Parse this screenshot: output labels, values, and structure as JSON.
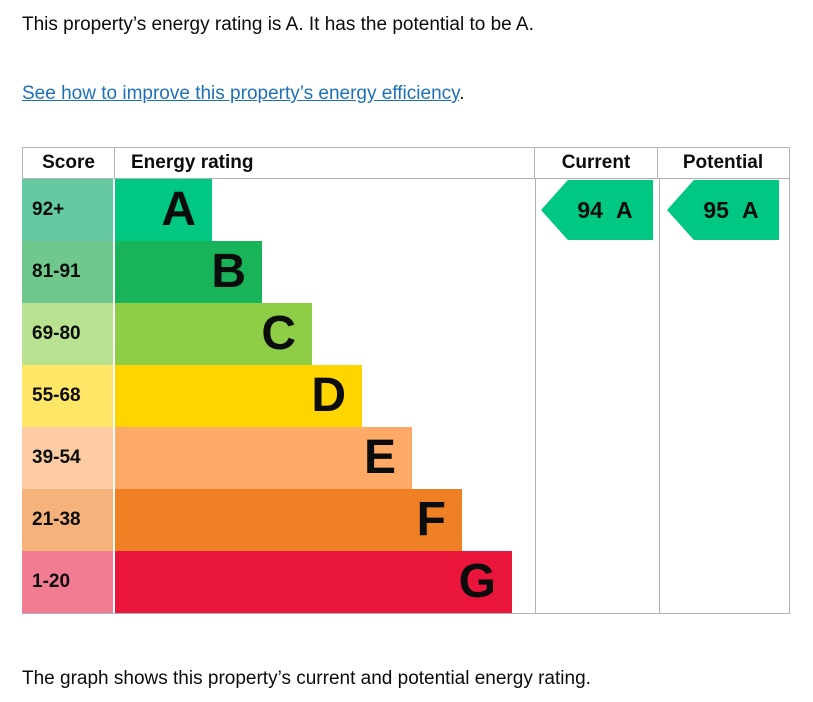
{
  "page": {
    "intro": "This property’s energy rating is A. It has the potential to be A.",
    "link_text": "See how to improve this property’s energy efficiency",
    "link_suffix": ".",
    "caption": "The graph shows this property’s current and potential energy rating."
  },
  "colors": {
    "text": "#0b0c0c",
    "link": "#1d70b8",
    "border": "#b1b4b6",
    "arrow": "#00c781"
  },
  "chart_data": {
    "type": "bar",
    "title": "EPC energy rating chart",
    "headers": {
      "score": "Score",
      "rating": "Energy rating",
      "current": "Current",
      "potential": "Potential"
    },
    "bands": [
      {
        "score": "92+",
        "letter": "A",
        "band_color": "#00c781",
        "score_color": "#65caa1"
      },
      {
        "score": "81-91",
        "letter": "B",
        "band_color": "#19b459",
        "score_color": "#70c98c"
      },
      {
        "score": "69-80",
        "letter": "C",
        "band_color": "#8dce46",
        "score_color": "#b9e290"
      },
      {
        "score": "55-68",
        "letter": "D",
        "band_color": "#ffd500",
        "score_color": "#ffe666"
      },
      {
        "score": "39-54",
        "letter": "E",
        "band_color": "#fcaa65",
        "score_color": "#fdcca2"
      },
      {
        "score": "21-38",
        "letter": "F",
        "band_color": "#ef8023",
        "score_color": "#f5b37b"
      },
      {
        "score": "1-20",
        "letter": "G",
        "band_color": "#e9153b",
        "score_color": "#f27d92"
      }
    ],
    "current": {
      "value": "94",
      "letter": "A",
      "arrow_color": "#00c781"
    },
    "potential": {
      "value": "95",
      "letter": "A",
      "arrow_color": "#00c781"
    }
  }
}
